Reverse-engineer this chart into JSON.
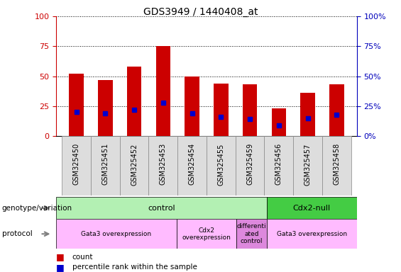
{
  "title": "GDS3949 / 1440408_at",
  "samples": [
    "GSM325450",
    "GSM325451",
    "GSM325452",
    "GSM325453",
    "GSM325454",
    "GSM325455",
    "GSM325459",
    "GSM325456",
    "GSM325457",
    "GSM325458"
  ],
  "counts": [
    52,
    47,
    58,
    75,
    50,
    44,
    43,
    23,
    36,
    43
  ],
  "percentiles": [
    20,
    19,
    22,
    28,
    19,
    16,
    14,
    9,
    15,
    18
  ],
  "bar_color": "#cc0000",
  "percentile_color": "#0000cc",
  "bar_width": 0.5,
  "ylim": [
    0,
    100
  ],
  "yticks": [
    0,
    25,
    50,
    75,
    100
  ],
  "grid_color": "black",
  "left_axis_color": "#cc0000",
  "right_axis_color": "#0000bb",
  "genotype_groups": [
    {
      "label": "control",
      "start": 0,
      "end": 7,
      "color": "#b3f0b3"
    },
    {
      "label": "Cdx2-null",
      "start": 7,
      "end": 10,
      "color": "#44cc44"
    }
  ],
  "protocol_groups": [
    {
      "label": "Gata3 overexpression",
      "start": 0,
      "end": 4,
      "color": "#ffbbff"
    },
    {
      "label": "Cdx2\noverexpression",
      "start": 4,
      "end": 6,
      "color": "#ffbbff"
    },
    {
      "label": "differenti\nated\ncontrol",
      "start": 6,
      "end": 7,
      "color": "#dd88dd"
    },
    {
      "label": "Gata3 overexpression",
      "start": 7,
      "end": 10,
      "color": "#ffbbff"
    }
  ],
  "genotype_label": "genotype/variation",
  "protocol_label": "protocol",
  "legend_count_label": "count",
  "legend_percentile_label": "percentile rank within the sample",
  "title_fontsize": 10,
  "tick_label_fontsize": 7,
  "axis_label_fontsize": 8,
  "right_ytick_labels": [
    "0%",
    "25%",
    "50%",
    "75%",
    "100%"
  ]
}
